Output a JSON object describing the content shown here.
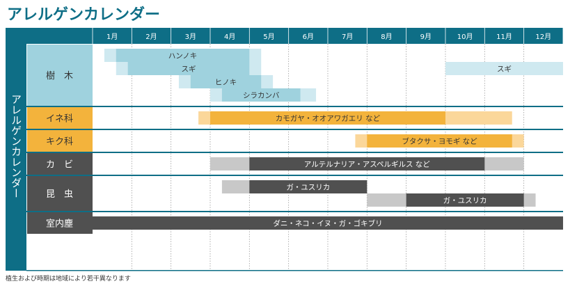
{
  "title": "アレルゲンカレンダー",
  "footnote": "植生および時期は地域により若干異なります",
  "colors": {
    "teal": "#0e6e86",
    "tree_bg": "#9fd2de",
    "grass_bg": "#f3b33c",
    "dark_bg": "#505050",
    "tree_light": "#cfe9f0",
    "tree_mid": "#9fd2de",
    "grass_light": "#fbd79a",
    "grass_mid": "#f3b33c",
    "dark_light": "#c8c8c8",
    "dark_mid": "#505050"
  },
  "chart_data": {
    "type": "gantt",
    "title": "アレルゲンカレンダー",
    "vertical_label": "アレルゲンカレンダー",
    "months": [
      "1月",
      "2月",
      "3月",
      "4月",
      "5月",
      "6月",
      "7月",
      "8月",
      "9月",
      "10月",
      "11月",
      "12月"
    ],
    "groups": [
      {
        "label": "樹　木",
        "theme": "tree",
        "lanes": [
          {
            "label": "ハンノキ",
            "light": [
              0.3,
              4.3
            ],
            "dark": [
              0.6,
              4.0
            ]
          },
          {
            "label": "スギ",
            "light": [
              0.6,
              4.3
            ],
            "dark": [
              0.9,
              4.0
            ]
          },
          {
            "label": "スギ",
            "light": [
              9.0,
              12.0
            ],
            "dark": null
          },
          {
            "label": "ヒノキ",
            "light": [
              2.2,
              4.6
            ],
            "dark": [
              2.5,
              4.3
            ]
          },
          {
            "label": "シラカンバ",
            "light": [
              3.0,
              5.7
            ],
            "dark": [
              3.3,
              5.3
            ]
          }
        ]
      },
      {
        "label": "イネ科",
        "theme": "grass",
        "lanes": [
          {
            "label": "カモガヤ・オオアワガエリ など",
            "light": [
              2.7,
              10.7
            ],
            "dark": [
              3.0,
              9.0
            ]
          }
        ]
      },
      {
        "label": "キク科",
        "theme": "grass",
        "lanes": [
          {
            "label": "ブタクサ・ヨモギ など",
            "light": [
              6.7,
              11.0
            ],
            "dark": [
              7.0,
              10.7
            ]
          }
        ]
      },
      {
        "label": "カ　ビ",
        "theme": "dark",
        "lanes": [
          {
            "label": "アルテルナリア・アスペルギルス など",
            "light": [
              3.0,
              11.0
            ],
            "dark": [
              4.0,
              10.0
            ]
          }
        ]
      },
      {
        "label": "昆　虫",
        "theme": "dark",
        "lanes": [
          {
            "label": "ガ・ユスリカ",
            "light": [
              3.3,
              7.0
            ],
            "dark": [
              4.0,
              7.0
            ]
          },
          {
            "label": "ガ・ユスリカ",
            "light": [
              7.0,
              11.3
            ],
            "dark": [
              8.0,
              11.0
            ]
          }
        ]
      },
      {
        "label": "室内塵",
        "theme": "dark",
        "lanes": [
          {
            "label": "ダニ・ネコ・イヌ・ガ・ゴキブリ",
            "light": [
              0.0,
              12.0
            ],
            "dark": [
              0.0,
              12.0
            ]
          }
        ]
      }
    ]
  }
}
